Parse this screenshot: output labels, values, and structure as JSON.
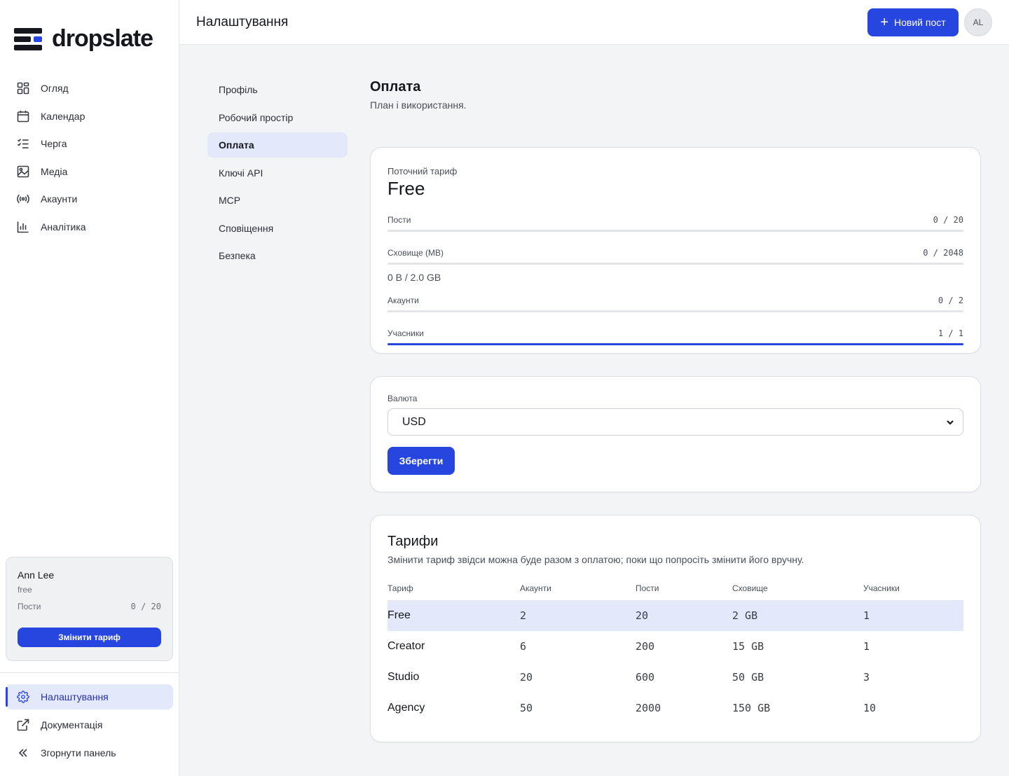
{
  "app": {
    "name": "dropslate"
  },
  "nav": {
    "items": [
      {
        "label": "Огляд",
        "icon": "grid-icon"
      },
      {
        "label": "Календар",
        "icon": "calendar-icon"
      },
      {
        "label": "Черга",
        "icon": "list-check-icon"
      },
      {
        "label": "Медіа",
        "icon": "image-icon"
      },
      {
        "label": "Акаунти",
        "icon": "broadcast-icon"
      },
      {
        "label": "Аналітика",
        "icon": "bar-chart-icon"
      }
    ],
    "bottom": [
      {
        "label": "Налаштування",
        "icon": "gear-icon",
        "active": true
      },
      {
        "label": "Документація",
        "icon": "external-link-icon"
      },
      {
        "label": "Згорнути панель",
        "icon": "chevrons-left-icon"
      }
    ]
  },
  "user_card": {
    "name": "Ann Lee",
    "plan": "free",
    "posts_label": "Пости",
    "posts_value": "0 / 20",
    "button": "Змінити тариф"
  },
  "header": {
    "title": "Налаштування",
    "new_post": "Новий пост",
    "avatar": "AL"
  },
  "settings_nav": [
    {
      "label": "Профіль"
    },
    {
      "label": "Робочий простір"
    },
    {
      "label": "Оплата",
      "active": true
    },
    {
      "label": "Ключі API"
    },
    {
      "label": "MCP"
    },
    {
      "label": "Сповіщення"
    },
    {
      "label": "Безпека"
    }
  ],
  "page": {
    "title": "Оплата",
    "subtitle": "План і використання."
  },
  "current_plan": {
    "label": "Поточний тариф",
    "name": "Free",
    "meters": [
      {
        "label": "Пости",
        "value": "0 / 20",
        "fraction": 0
      },
      {
        "label": "Сховище (MB)",
        "value": "0 / 2048",
        "fraction": 0
      },
      {
        "label": "Акаунти",
        "value": "0 / 2",
        "fraction": 0
      },
      {
        "label": "Учасники",
        "value": "1 / 1",
        "fraction": 1
      }
    ],
    "storage_note": "0 B / 2.0 GB"
  },
  "currency": {
    "label": "Валюта",
    "value": "USD",
    "save": "Зберегти"
  },
  "tariffs": {
    "title": "Тарифи",
    "subtitle": "Змінити тариф звідси можна буде разом з оплатою; поки що попросіть змінити його вручну.",
    "columns": [
      "Тариф",
      "Акаунти",
      "Пости",
      "Сховище",
      "Учасники"
    ],
    "rows": [
      {
        "name": "Free",
        "accounts": "2",
        "posts": "20",
        "storage": "2 GB",
        "members": "1",
        "current": true
      },
      {
        "name": "Creator",
        "accounts": "6",
        "posts": "200",
        "storage": "15 GB",
        "members": "1"
      },
      {
        "name": "Studio",
        "accounts": "20",
        "posts": "600",
        "storage": "50 GB",
        "members": "3"
      },
      {
        "name": "Agency",
        "accounts": "50",
        "posts": "2000",
        "storage": "150 GB",
        "members": "10"
      }
    ]
  },
  "colors": {
    "accent": "#2746e0",
    "active_bg": "#e3e8fb"
  }
}
